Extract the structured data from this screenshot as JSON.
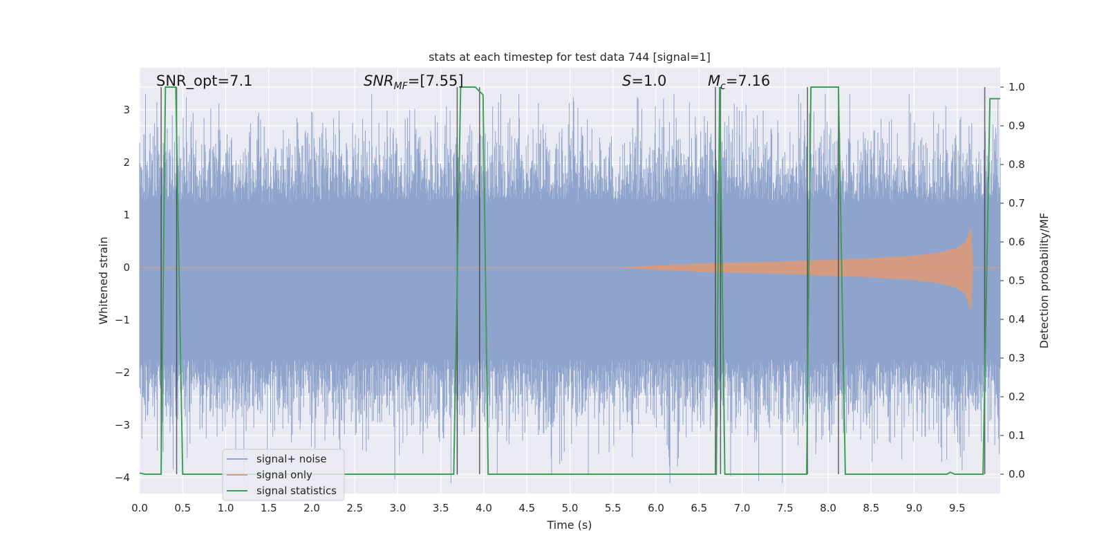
{
  "chart_data": {
    "type": "line",
    "title": "stats at each timestep for test data 744 [signal=1]",
    "xlabel": "Time (s)",
    "ylabel": "Whitened strain",
    "ylabel_right": "Detection probability/MF",
    "xlim": [
      0,
      10
    ],
    "ylim": [
      -4.3,
      3.8
    ],
    "ylim_right": [
      -0.05,
      1.05
    ],
    "xticks": [
      "0.0",
      "0.5",
      "1.0",
      "1.5",
      "2.0",
      "2.5",
      "3.0",
      "3.5",
      "4.0",
      "4.5",
      "5.0",
      "5.5",
      "6.0",
      "6.5",
      "7.0",
      "7.5",
      "8.0",
      "8.5",
      "9.0",
      "9.5"
    ],
    "yticks": [
      "3",
      "2",
      "1",
      "0",
      "−1",
      "−2",
      "−3",
      "−4"
    ],
    "yticks_right": [
      "1.0",
      "0.9",
      "0.8",
      "0.7",
      "0.6",
      "0.5",
      "0.4",
      "0.3",
      "0.2",
      "0.1",
      "0.0"
    ],
    "grid": true,
    "legend_position": "lower-left",
    "annotations": {
      "snr_opt": "SNR_opt=7.1",
      "snr_mf_base": "SNR",
      "snr_mf_sub": "MF",
      "snr_mf_val": "=[7.55]",
      "s_base": "S",
      "s_val": "=1.0",
      "mc_base": "M",
      "mc_sub": "c",
      "mc_val": "=7.16"
    },
    "series": [
      {
        "name": "signal+ noise",
        "color": "#8fa4cc",
        "noise_band": [
          -1.75,
          1.25
        ],
        "peak_range": [
          -4.1,
          3.3
        ]
      },
      {
        "name": "signal only",
        "color": "#d99a7a",
        "envelope": {
          "x": [
            5.6,
            6.5,
            7.5,
            8.5,
            9.0,
            9.3,
            9.5,
            9.6,
            9.66,
            9.68
          ],
          "amp": [
            0.0,
            0.07,
            0.11,
            0.17,
            0.22,
            0.28,
            0.37,
            0.48,
            0.75,
            0.0
          ]
        }
      },
      {
        "name": "signal statistics",
        "color": "#3f9e56",
        "x": [
          0.0,
          0.06,
          0.25,
          0.3,
          0.42,
          0.5,
          0.6,
          3.65,
          3.73,
          3.78,
          3.9,
          3.99,
          4.05,
          6.7,
          6.74,
          6.8,
          6.86,
          7.75,
          7.8,
          8.12,
          8.2,
          8.3,
          9.38,
          9.42,
          9.47,
          9.7,
          9.8,
          9.88,
          9.95,
          10.0
        ],
        "y": [
          0.003,
          0.0,
          0.0,
          1.0,
          1.0,
          0.0,
          0.0,
          0.0,
          1.0,
          1.0,
          1.0,
          0.98,
          0.0,
          0.0,
          1.0,
          0.0,
          0.0,
          0.0,
          1.0,
          1.0,
          0.0,
          0.0,
          0.0,
          0.005,
          0.0,
          0.0,
          0.0,
          0.97,
          0.97,
          0.97
        ]
      }
    ],
    "vertical_markers": [
      0.25,
      0.43,
      3.69,
      3.95,
      6.69,
      6.75,
      7.76,
      8.12,
      9.82
    ]
  }
}
